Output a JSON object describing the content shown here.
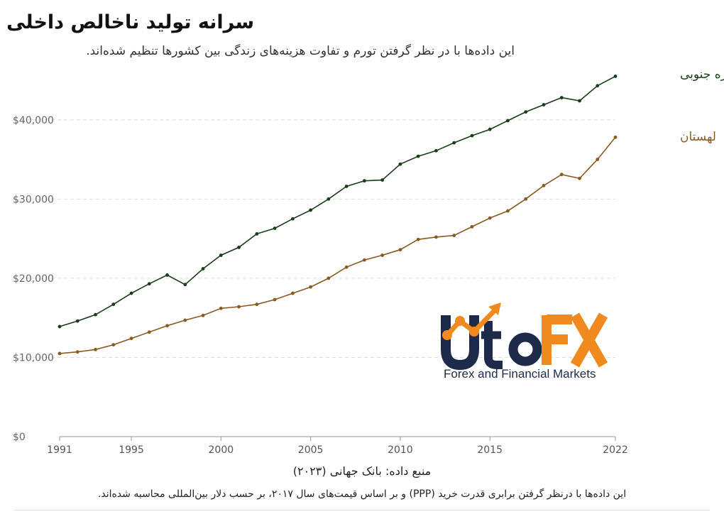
{
  "header": {
    "title": "سرانه تولید ناخالص داخلی",
    "subtitle": "این داده‌ها با در نظر گرفتن تورم و تفاوت هزینه‌های زندگی بین کشورها تنظیم شده‌اند."
  },
  "footer": {
    "source": "منبع داده: بانک جهانی (۲۰۲۳)",
    "note": "این داده‌ها با درنظر گرفتن برابری قدرت خرید (PPP) و بر اساس قیمت‌های سال ۲۰۱۷، بر حسب دلار بین‌المللی محاسبه شده‌اند."
  },
  "watermark": {
    "logo_text": "UtoFX",
    "tagline": "Forex and Financial Markets",
    "colors": {
      "navy": "#1e2a4a",
      "orange": "#f08a1e"
    }
  },
  "chart_data": {
    "type": "line",
    "x": [
      1991,
      1992,
      1993,
      1994,
      1995,
      1996,
      1997,
      1998,
      1999,
      2000,
      2001,
      2002,
      2003,
      2004,
      2005,
      2006,
      2007,
      2008,
      2009,
      2010,
      2011,
      2012,
      2013,
      2014,
      2015,
      2016,
      2017,
      2018,
      2019,
      2020,
      2021,
      2022
    ],
    "x_tick_labels": [
      "1991",
      "1995",
      "2000",
      "2005",
      "2010",
      "2015",
      "2022"
    ],
    "x_ticks": [
      1991,
      1995,
      2000,
      2005,
      2010,
      2015,
      2022
    ],
    "y_ticks": [
      0,
      10000,
      20000,
      30000,
      40000
    ],
    "y_tick_labels": [
      "$0",
      "$10,000",
      "$20,000",
      "$30,000",
      "$40,000"
    ],
    "ylim": [
      0,
      45000
    ],
    "grid": "horizontal dashed",
    "series": [
      {
        "name": "کره جنوبی",
        "color": "#1a3d1a",
        "values": [
          13900,
          14600,
          15400,
          16700,
          18100,
          19300,
          20400,
          19200,
          21200,
          22900,
          23900,
          25600,
          26300,
          27500,
          28600,
          30000,
          31600,
          32300,
          32400,
          34400,
          35400,
          36100,
          37100,
          38000,
          38800,
          39900,
          41000,
          41900,
          42800,
          42400,
          44300,
          45500
        ]
      },
      {
        "name": "لهستان",
        "color": "#8a5a22",
        "values": [
          10500,
          10700,
          11000,
          11600,
          12400,
          13200,
          14000,
          14700,
          15300,
          16200,
          16400,
          16700,
          17300,
          18100,
          18900,
          20000,
          21400,
          22300,
          22900,
          23600,
          24900,
          25200,
          25400,
          26500,
          27600,
          28500,
          30000,
          31700,
          33100,
          32600,
          35000,
          37800
        ]
      }
    ]
  }
}
